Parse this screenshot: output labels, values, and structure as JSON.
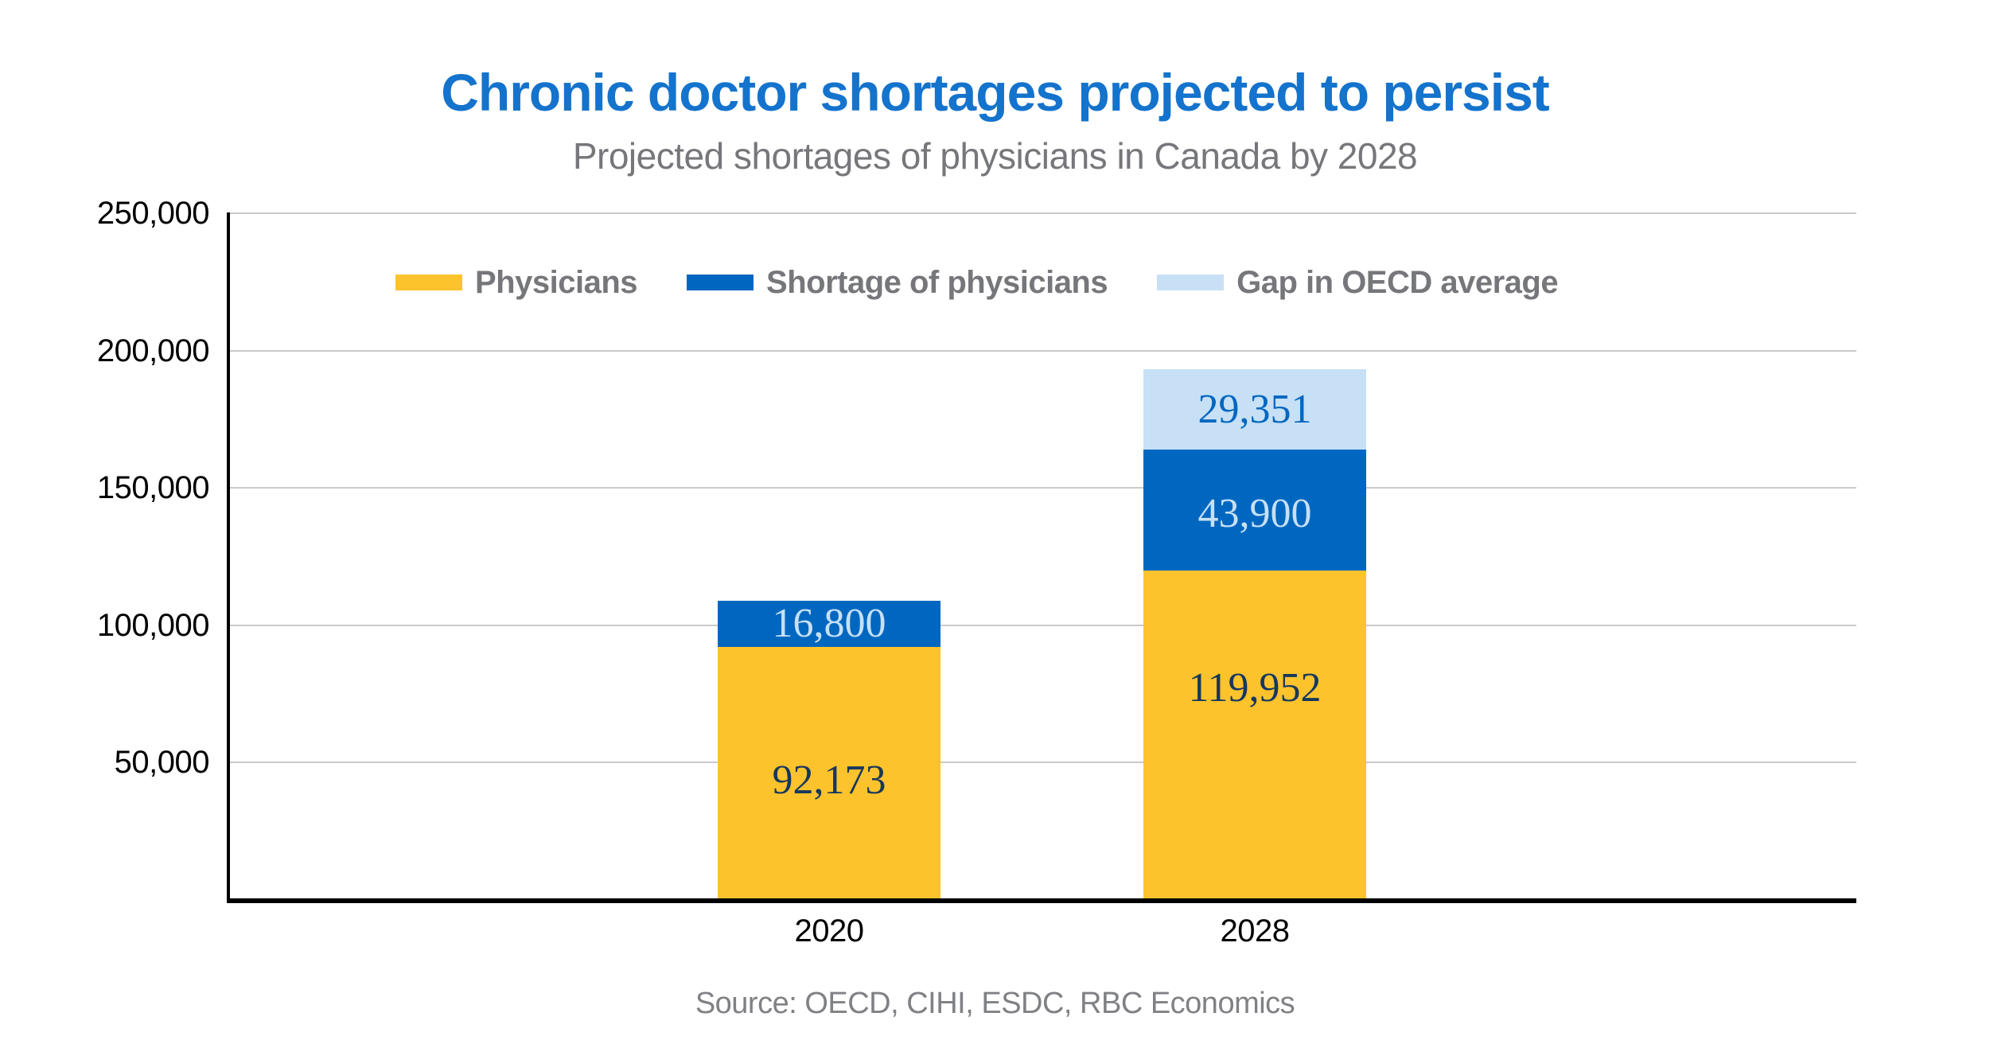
{
  "header": {
    "title": "Chronic doctor shortages projected to persist",
    "subtitle": "Projected shortages of physicians in Canada by 2028"
  },
  "colors": {
    "title_blue": "#1473CC",
    "physicians_yellow": "#FCC32D",
    "shortage_blue": "#0067C0",
    "gap_light_blue": "#C7E0F5",
    "navy_label": "#17375D",
    "legend_gray": "#76777A",
    "source_gray": "#7F8184",
    "gridline_gray": "#C9CACC",
    "axis_black": "#000000"
  },
  "chart_data": {
    "type": "bar",
    "subtype": "stacked-vertical",
    "title": "Chronic doctor shortages projected to persist",
    "subtitle": "Projected shortages of physicians in Canada by 2028",
    "categories": [
      "2020",
      "2028"
    ],
    "series": [
      {
        "name": "Physicians",
        "color": "#FCC32D",
        "label_color": "#17375D",
        "values": [
          92173,
          119952
        ],
        "labels": [
          "92,173",
          "119,952"
        ]
      },
      {
        "name": "Shortage of physicians",
        "color": "#0067C0",
        "label_color": "#C7E0F5",
        "values": [
          16800,
          43900
        ],
        "labels": [
          "16,800",
          "43,900"
        ]
      },
      {
        "name": "Gap in OECD average",
        "color": "#C7E0F5",
        "label_color": "#0067C0",
        "values": [
          0,
          29351
        ],
        "labels": [
          "",
          "29,351"
        ]
      }
    ],
    "totals": [
      108973,
      193203
    ],
    "ylim": [
      0,
      250000
    ],
    "yticks": [
      {
        "value": 250000,
        "label": "250,000"
      },
      {
        "value": 200000,
        "label": "200,000"
      },
      {
        "value": 150000,
        "label": "150,000"
      },
      {
        "value": 100000,
        "label": "100,000"
      },
      {
        "value": 50000,
        "label": "50,000"
      }
    ],
    "grid": "horizontal-on",
    "legend_position": "top-inside"
  },
  "source": {
    "text": "Source: OECD, CIHI, ESDC, RBC Economics"
  }
}
